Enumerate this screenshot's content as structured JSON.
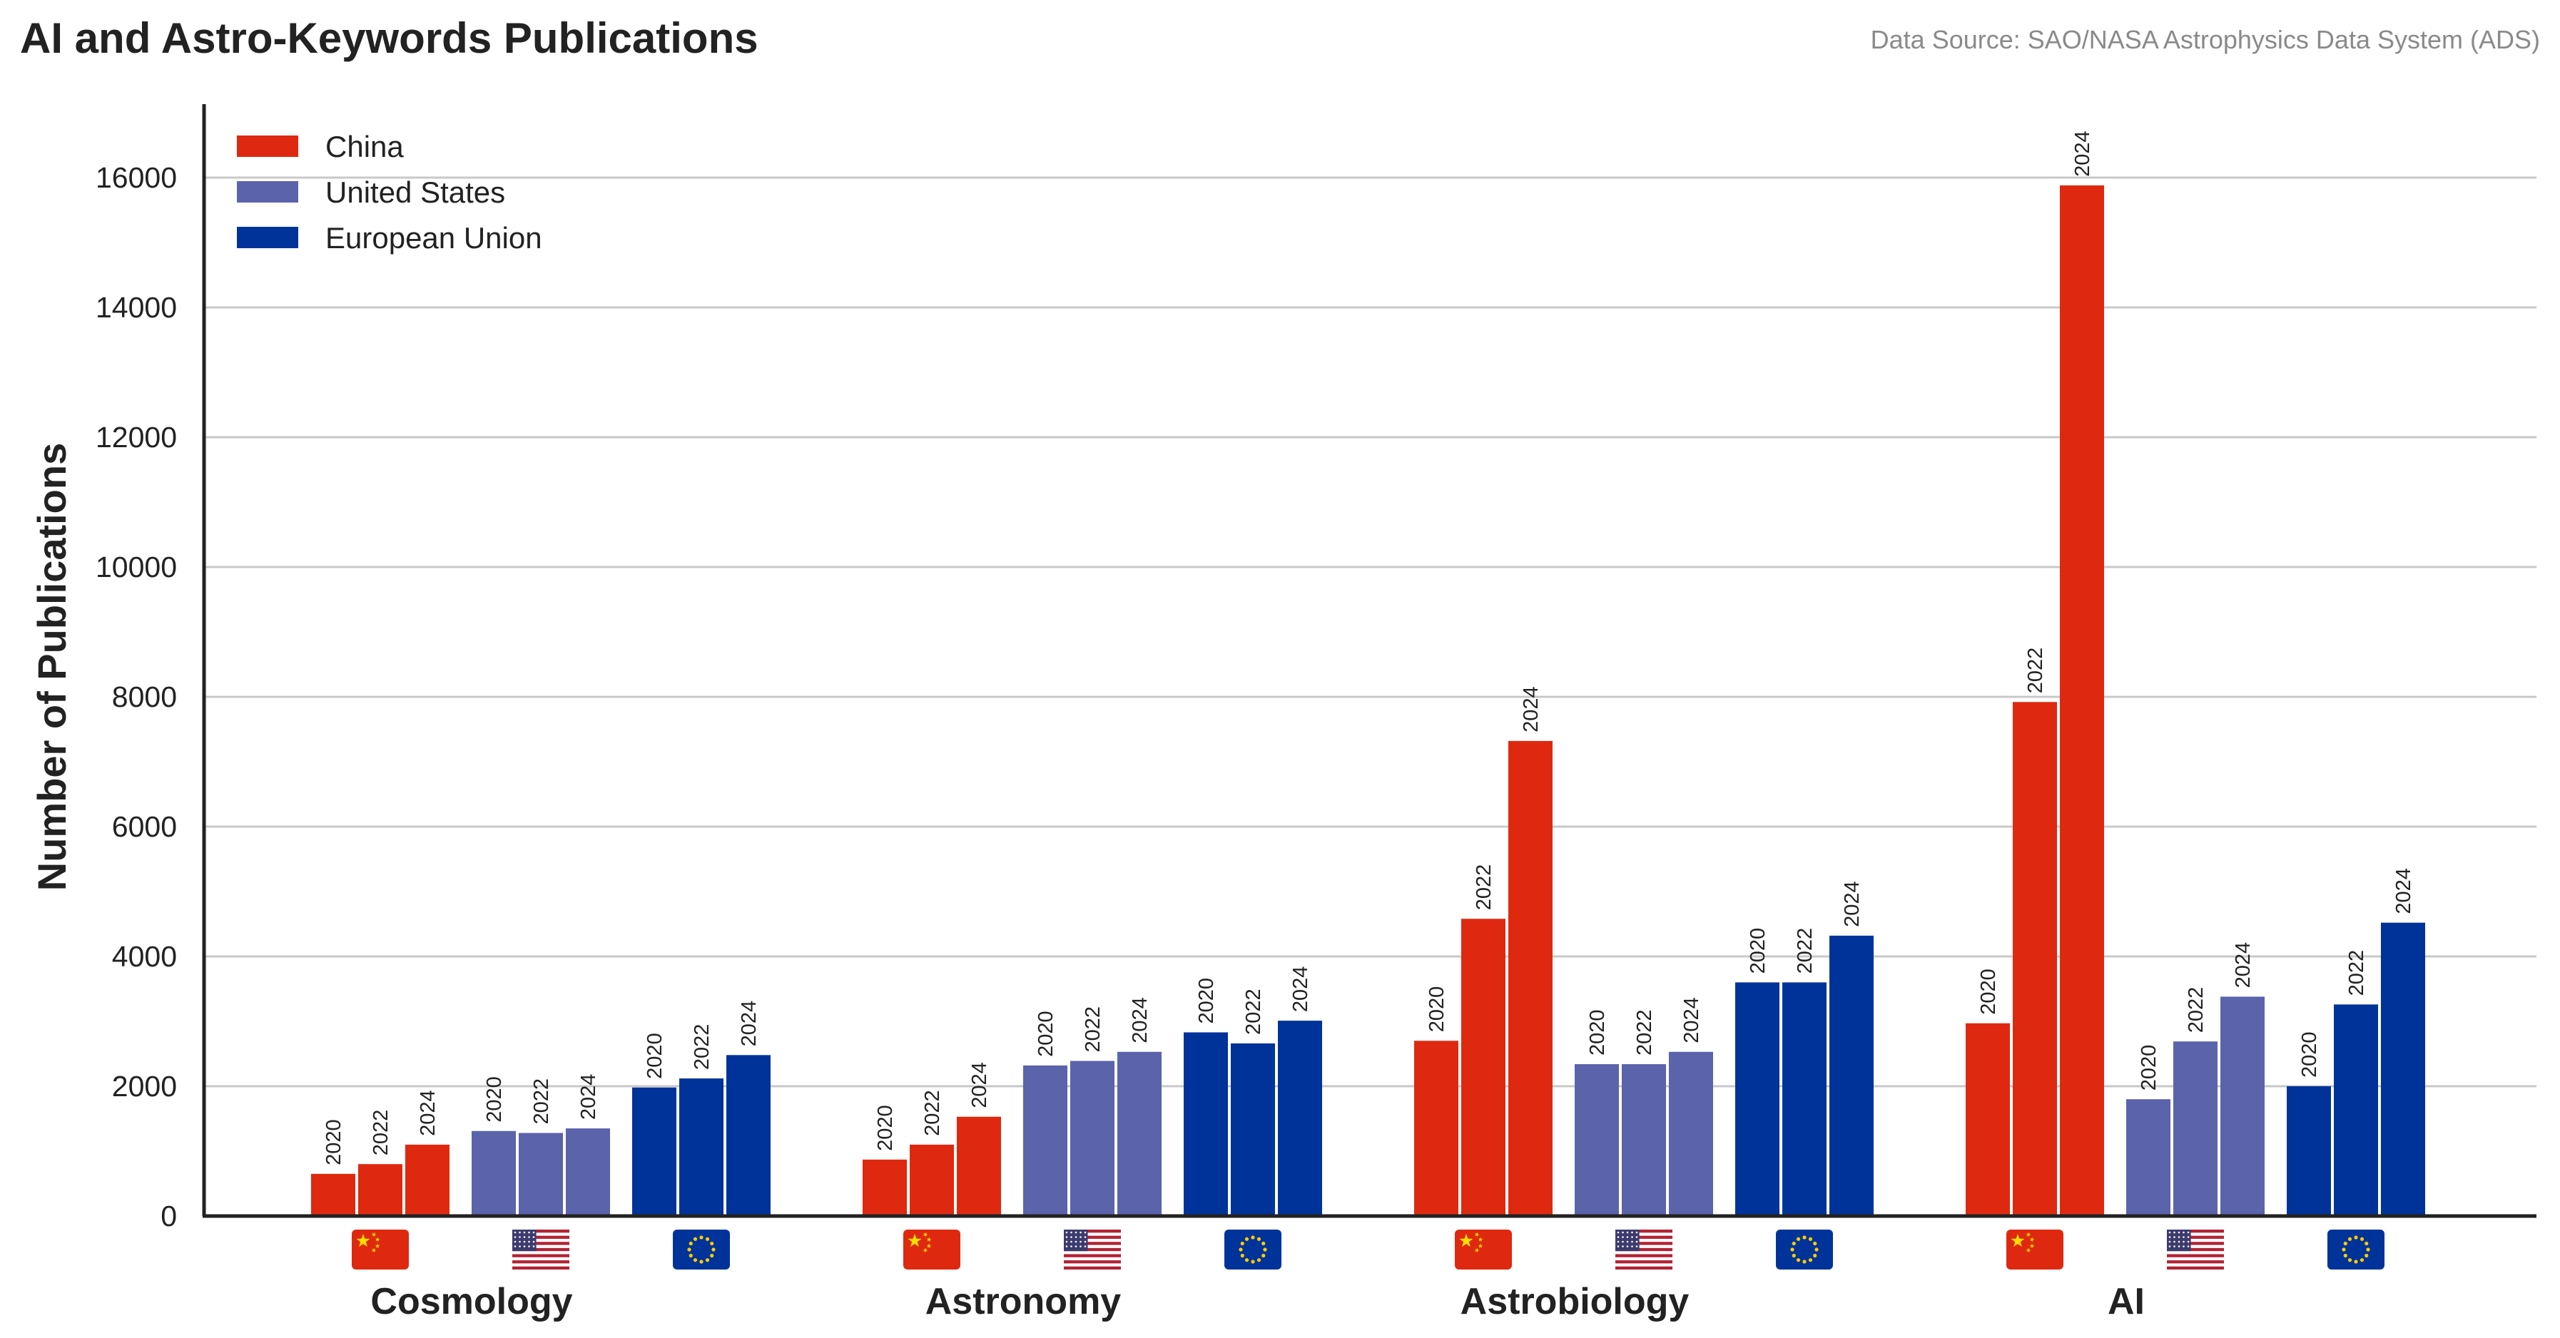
{
  "title": "AI and Astro-Keywords Publications",
  "source": "Data Source: SAO/NASA Astrophysics Data System (ADS)",
  "chart_data": {
    "type": "bar",
    "title": "AI and Astro-Keywords Publications",
    "xlabel": "",
    "ylabel": "Number of Publications",
    "ylim": [
      0,
      17000
    ],
    "yticks": [
      "0",
      "2000",
      "4000",
      "6000",
      "8000",
      "10000",
      "12000",
      "14000",
      "16000"
    ],
    "grid": true,
    "legend_position": "top-left",
    "categories": [
      "Cosmology",
      "Astronomy",
      "Astrobiology",
      "AI"
    ],
    "years": [
      "2020",
      "2022",
      "2024"
    ],
    "series": [
      {
        "name": "China",
        "color": "#de2910",
        "flag_icon": "china-flag-icon",
        "values": [
          [
            650,
            800,
            1100
          ],
          [
            870,
            1100,
            1530
          ],
          [
            2700,
            4580,
            7320
          ],
          [
            2970,
            7920,
            15880
          ]
        ]
      },
      {
        "name": "United States",
        "color": "#5b63ab",
        "flag_icon": "us-flag-icon",
        "values": [
          [
            1310,
            1280,
            1350
          ],
          [
            2320,
            2390,
            2530
          ],
          [
            2340,
            2340,
            2530
          ],
          [
            1800,
            2690,
            3380
          ]
        ]
      },
      {
        "name": "European Union",
        "color": "#003399",
        "flag_icon": "eu-flag-icon",
        "values": [
          [
            1980,
            2120,
            2480
          ],
          [
            2830,
            2660,
            3010
          ],
          [
            3600,
            3600,
            4320
          ],
          [
            2000,
            3260,
            4520
          ]
        ]
      }
    ]
  }
}
